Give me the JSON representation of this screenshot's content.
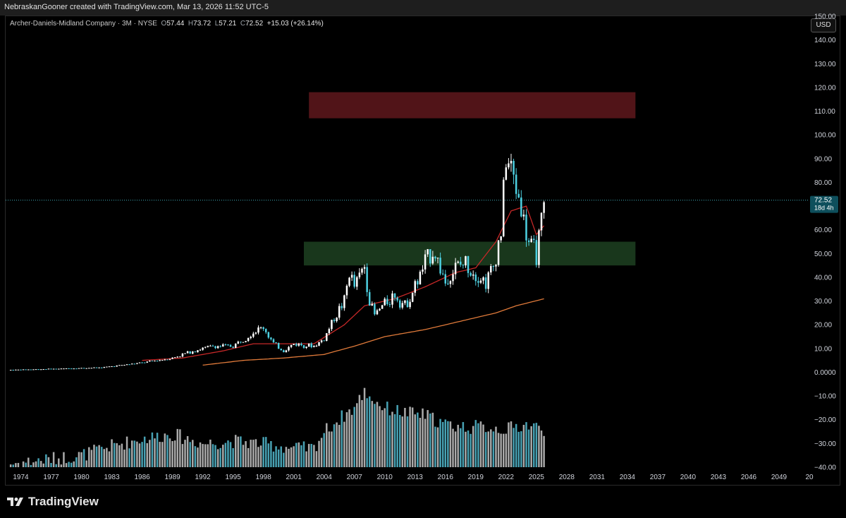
{
  "header": {
    "credit": "NebraskanGooner created with TradingView.com, Mar 13, 2026 11:52 UTC-5"
  },
  "legend": {
    "symbol": "Archer-Daniels-Midland Company · 3M · NYSE",
    "open_label": "O",
    "open": "57.44",
    "high_label": "H",
    "high": "73.72",
    "low_label": "L",
    "low": "57.21",
    "close_label": "C",
    "close": "72.52",
    "change": "+15.03 (+26.14%)"
  },
  "currency_button": "USD",
  "price_label": {
    "value": "72.52",
    "countdown": "18d 4h"
  },
  "colors": {
    "up": "#ffffff",
    "down": "#4dd0e1",
    "ema_short": "#c62828",
    "ema_long": "#e07a3a",
    "resistance_zone": "#5a161b",
    "support_zone": "#1c3d1f",
    "price_line": "#4dd0e1"
  },
  "chart_data": {
    "type": "candlestick",
    "yaxis": {
      "ticks": [
        "150.00",
        "140.00",
        "130.00",
        "120.00",
        "110.00",
        "100.00",
        "90.00",
        "80.00",
        "70.00",
        "60.00",
        "50.00",
        "40.00",
        "30.00",
        "20.00",
        "10.00",
        "0.0000",
        "−10.00",
        "−20.00",
        "−30.00",
        "−40.00"
      ],
      "range": [
        -40,
        150
      ]
    },
    "xaxis": {
      "ticks": [
        "1974",
        "1977",
        "1980",
        "1983",
        "1986",
        "1989",
        "1992",
        "1995",
        "1998",
        "2001",
        "2004",
        "2007",
        "2010",
        "2013",
        "2016",
        "2019",
        "2022",
        "2025",
        "2028",
        "2031",
        "2034",
        "2037",
        "2040",
        "2043",
        "2046",
        "2049",
        "20"
      ],
      "range": [
        1972.5,
        2052
      ]
    },
    "zones": [
      {
        "name": "resistance",
        "x_start": 2002.5,
        "x_end": 2034.8,
        "y_low": 107,
        "y_high": 118
      },
      {
        "name": "support",
        "x_start": 2002,
        "x_end": 2034.8,
        "y_low": 45,
        "y_high": 55
      }
    ],
    "current_price": 72.52,
    "ma_long_anchors": [
      [
        1992,
        3
      ],
      [
        1996,
        5
      ],
      [
        2000,
        6
      ],
      [
        2004,
        7.5
      ],
      [
        2007,
        11
      ],
      [
        2010,
        15
      ],
      [
        2014,
        18
      ],
      [
        2018,
        22
      ],
      [
        2021,
        25
      ],
      [
        2023,
        28
      ],
      [
        2025.8,
        31
      ]
    ],
    "ma_short_anchors": [
      [
        1986,
        5
      ],
      [
        1990,
        6
      ],
      [
        1994,
        9
      ],
      [
        1997,
        12
      ],
      [
        2000,
        12
      ],
      [
        2003,
        12
      ],
      [
        2006,
        20
      ],
      [
        2008,
        28
      ],
      [
        2011,
        31
      ],
      [
        2014,
        36
      ],
      [
        2017,
        42
      ],
      [
        2019,
        44
      ],
      [
        2021,
        55
      ],
      [
        2022.5,
        68
      ],
      [
        2024,
        70
      ],
      [
        2025,
        58
      ],
      [
        2025.8,
        62
      ]
    ],
    "price_anchors": [
      [
        1973,
        1
      ],
      [
        1978,
        1.5
      ],
      [
        1982,
        2
      ],
      [
        1986,
        4
      ],
      [
        1989,
        6
      ],
      [
        1991,
        9
      ],
      [
        1993,
        11
      ],
      [
        1995,
        11
      ],
      [
        1997,
        17
      ],
      [
        1998,
        19
      ],
      [
        1999,
        12
      ],
      [
        2000,
        9
      ],
      [
        2001,
        12
      ],
      [
        2003,
        11
      ],
      [
        2004,
        14
      ],
      [
        2005,
        23
      ],
      [
        2006,
        30
      ],
      [
        2006.5,
        42
      ],
      [
        2007,
        36
      ],
      [
        2008,
        45
      ],
      [
        2008.5,
        30
      ],
      [
        2009,
        24
      ],
      [
        2010,
        29
      ],
      [
        2011,
        33
      ],
      [
        2012,
        28
      ],
      [
        2013,
        36
      ],
      [
        2014,
        46
      ],
      [
        2014.8,
        52
      ],
      [
        2015.5,
        44
      ],
      [
        2016,
        38
      ],
      [
        2017,
        44
      ],
      [
        2018,
        46
      ],
      [
        2019,
        42
      ],
      [
        2020,
        38
      ],
      [
        2020.8,
        45
      ],
      [
        2021.5,
        60
      ],
      [
        2022,
        90
      ],
      [
        2022.5,
        85
      ],
      [
        2023,
        78
      ],
      [
        2023.5,
        70
      ],
      [
        2024,
        58
      ],
      [
        2024.5,
        52
      ],
      [
        2025,
        50
      ],
      [
        2025.5,
        62
      ],
      [
        2025.9,
        72.5
      ]
    ],
    "volume_anchors": [
      [
        1973,
        -38.5
      ],
      [
        1980,
        -35
      ],
      [
        1983,
        -31
      ],
      [
        1986,
        -28
      ],
      [
        1989,
        -26
      ],
      [
        1992,
        -30
      ],
      [
        1995,
        -29
      ],
      [
        1998,
        -30
      ],
      [
        2001,
        -32
      ],
      [
        2003,
        -32
      ],
      [
        2004,
        -25
      ],
      [
        2006,
        -18
      ],
      [
        2007,
        -15
      ],
      [
        2008,
        -8
      ],
      [
        2009,
        -12
      ],
      [
        2010,
        -15
      ],
      [
        2012,
        -17
      ],
      [
        2014,
        -18
      ],
      [
        2016,
        -22
      ],
      [
        2018,
        -23
      ],
      [
        2020,
        -23
      ],
      [
        2022,
        -24
      ],
      [
        2024,
        -22
      ],
      [
        2025.8,
        -24
      ]
    ]
  }
}
